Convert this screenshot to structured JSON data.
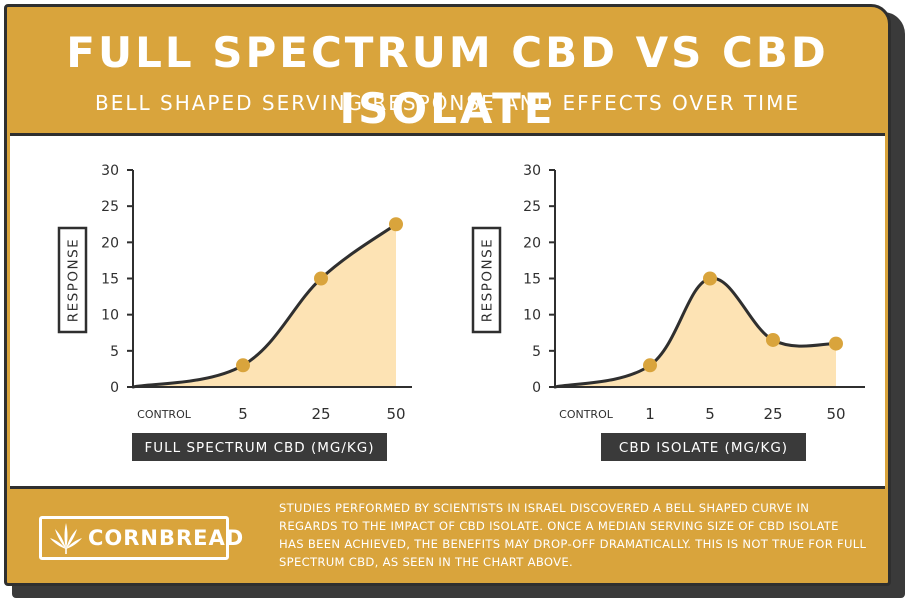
{
  "header": {
    "title": "FULL SPECTRUM CBD VS CBD ISOLATE",
    "subtitle": "BELL SHAPED SERVING RESPONSE AND EFFECTS OVER TIME"
  },
  "colors": {
    "gold": "#d9a43c",
    "fill": "#fde3b4",
    "line": "#2f2f2f",
    "marker": "#d9a43c",
    "label_bg": "#3a3a3a"
  },
  "chart_data": [
    {
      "type": "area",
      "categories": [
        "CONTROL",
        "5",
        "25",
        "50"
      ],
      "values": [
        0,
        3,
        15,
        22.5
      ],
      "ylabel": "RESPONSE",
      "xlabel": "FULL SPECTRUM CBD (MG/KG)",
      "ylim": [
        0,
        30
      ],
      "yticks": [
        "0",
        "5",
        "10",
        "15",
        "20",
        "25",
        "30"
      ],
      "grid": false
    },
    {
      "type": "area",
      "categories": [
        "CONTROL",
        "1",
        "5",
        "25",
        "50"
      ],
      "values": [
        0,
        3,
        15,
        6.5,
        6
      ],
      "ylabel": "RESPONSE",
      "xlabel": "CBD ISOLATE (MG/KG)",
      "ylim": [
        0,
        30
      ],
      "yticks": [
        "0",
        "5",
        "10",
        "15",
        "20",
        "25",
        "30"
      ],
      "grid": false
    }
  ],
  "footer": {
    "logo_text": "CORNBREAD",
    "logo_icon": "hemp-leaf-icon",
    "note": "STUDIES PERFORMED BY SCIENTISTS IN ISRAEL DISCOVERED A BELL SHAPED CURVE IN REGARDS TO THE IMPACT OF CBD ISOLATE. ONCE A MEDIAN SERVING SIZE OF CBD ISOLATE HAS BEEN ACHIEVED, THE BENEFITS MAY DROP-OFF DRAMATICALLY. THIS IS NOT TRUE FOR FULL SPECTRUM CBD, AS SEEN IN THE CHART ABOVE."
  }
}
